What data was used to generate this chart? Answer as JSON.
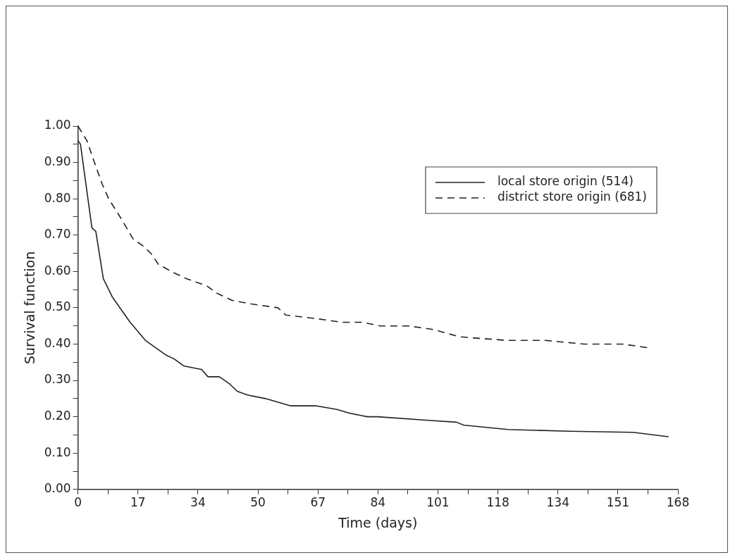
{
  "chart_data": {
    "type": "line",
    "xlabel": "Time (days)",
    "ylabel": "Survival function",
    "xlim": [
      0,
      168
    ],
    "ylim": [
      0,
      1
    ],
    "xticks": [
      0,
      {
        "value": 8.4,
        "label": null
      },
      {
        "value": 16.8,
        "label": "17"
      },
      {
        "value": 25.2,
        "label": null
      },
      {
        "value": 33.6,
        "label": "34"
      },
      {
        "value": 42,
        "label": null
      },
      {
        "value": 50.4,
        "label": "50"
      },
      {
        "value": 58.8,
        "label": null
      },
      {
        "value": 67.2,
        "label": "67"
      },
      {
        "value": 75.6,
        "label": null
      },
      {
        "value": 84,
        "label": "84"
      },
      {
        "value": 92.4,
        "label": null
      },
      {
        "value": 100.8,
        "label": "101"
      },
      {
        "value": 109.2,
        "label": null
      },
      {
        "value": 117.6,
        "label": "118"
      },
      {
        "value": 126,
        "label": null
      },
      {
        "value": 134.4,
        "label": "134"
      },
      {
        "value": 142.8,
        "label": null
      },
      {
        "value": 151.2,
        "label": "151"
      },
      {
        "value": 159.6,
        "label": null
      },
      168
    ],
    "yticks": [
      {
        "value": 0,
        "label": "0.00"
      },
      {
        "value": 0.05,
        "label": null
      },
      {
        "value": 0.1,
        "label": "0.10"
      },
      {
        "value": 0.15,
        "label": null
      },
      {
        "value": 0.2,
        "label": "0.20"
      },
      {
        "value": 0.25,
        "label": null
      },
      {
        "value": 0.3,
        "label": "0.30"
      },
      {
        "value": 0.35,
        "label": null
      },
      {
        "value": 0.4,
        "label": "0.40"
      },
      {
        "value": 0.45,
        "label": null
      },
      {
        "value": 0.5,
        "label": "0.50"
      },
      {
        "value": 0.55,
        "label": null
      },
      {
        "value": 0.6,
        "label": "0.60"
      },
      {
        "value": 0.65,
        "label": null
      },
      {
        "value": 0.7,
        "label": "0.70"
      },
      {
        "value": 0.75,
        "label": null
      },
      {
        "value": 0.8,
        "label": "0.80"
      },
      {
        "value": 0.85,
        "label": null
      },
      {
        "value": 0.9,
        "label": "0.90"
      },
      {
        "value": 0.95,
        "label": null
      },
      {
        "value": 1,
        "label": "1.00"
      }
    ],
    "grid": false,
    "legend": "top right",
    "marker": "none",
    "series": [
      {
        "name": "local store origin (514)",
        "color": "#222222",
        "line_style": "solid",
        "x": [
          0,
          0.7,
          3.9,
          5,
          7.1,
          9.6,
          14.6,
          18.9,
          24.6,
          26.8,
          29.6,
          34.6,
          36.4,
          39.6,
          42.5,
          44.6,
          47.5,
          52.5,
          59.6,
          66.8,
          72.5,
          76,
          81,
          83.9,
          98.2,
          106,
          108,
          120.4,
          138,
          155.4,
          165.4
        ],
        "values": [
          0.96,
          0.95,
          0.72,
          0.71,
          0.58,
          0.53,
          0.46,
          0.41,
          0.37,
          0.36,
          0.34,
          0.33,
          0.31,
          0.31,
          0.29,
          0.27,
          0.26,
          0.25,
          0.23,
          0.23,
          0.22,
          0.21,
          0.2,
          0.2,
          0.19,
          0.185,
          0.177,
          0.165,
          0.16,
          0.157,
          0.145
        ]
      },
      {
        "name": "district store origin (681)",
        "color": "#222222",
        "line_style": "dashed",
        "x": [
          0,
          2.5,
          4.6,
          6.8,
          8.6,
          11.8,
          15.4,
          18.2,
          20.4,
          22.5,
          26.1,
          30.4,
          36.1,
          38.9,
          43.2,
          48.9,
          56,
          58.2,
          66.8,
          73.9,
          79.6,
          84.6,
          92.5,
          99.6,
          106.8,
          120.4,
          131,
          141.8,
          152.5,
          159.6
        ],
        "values": [
          1,
          0.96,
          0.9,
          0.84,
          0.8,
          0.75,
          0.69,
          0.67,
          0.65,
          0.62,
          0.6,
          0.58,
          0.56,
          0.54,
          0.52,
          0.51,
          0.5,
          0.48,
          0.47,
          0.46,
          0.46,
          0.45,
          0.45,
          0.44,
          0.42,
          0.41,
          0.41,
          0.4,
          0.4,
          0.39
        ]
      }
    ]
  }
}
